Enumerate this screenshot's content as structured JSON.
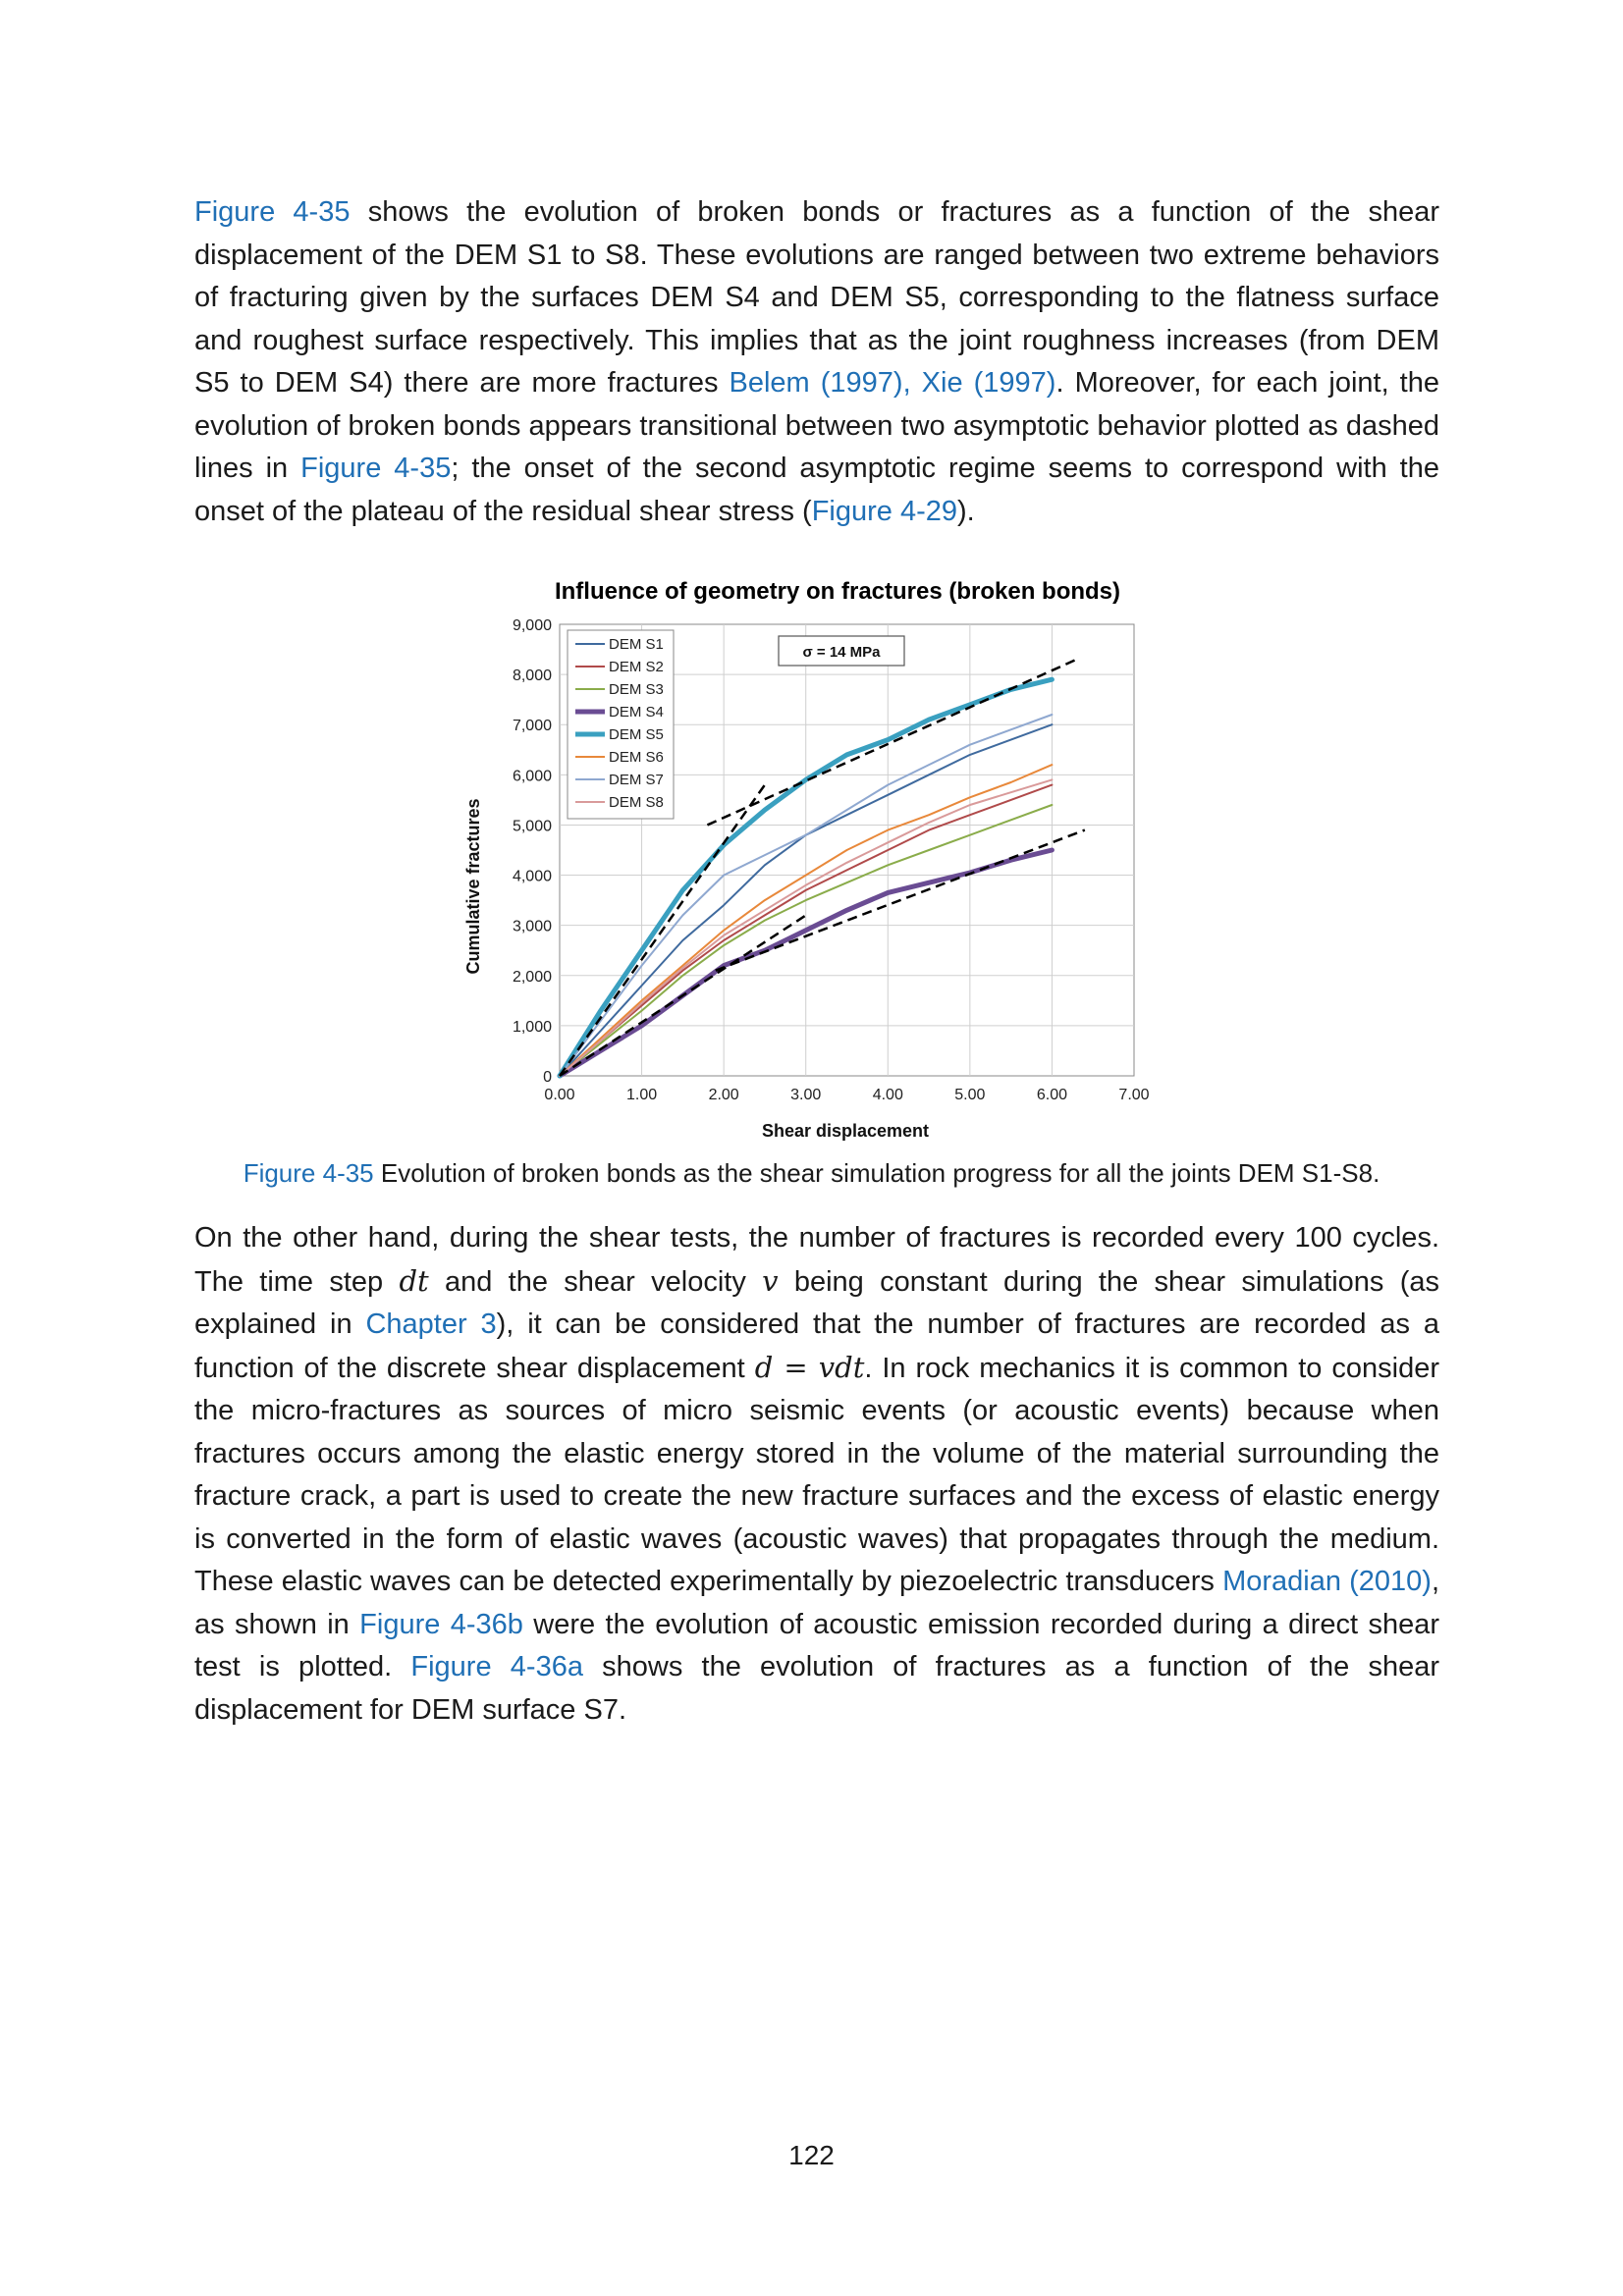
{
  "paragraph1": {
    "seg1": "Figure 4-35",
    "seg2": " shows the evolution of broken bonds or fractures as a function of the shear displacement of the DEM S1 to S8. These evolutions are ranged between two extreme behaviors of fracturing given by the surfaces DEM S4 and DEM S5, corresponding to the flatness surface and roughest surface respectively. This implies that as the joint roughness increases (from DEM S5 to DEM S4) there are more fractures ",
    "seg3": "Belem (1997), Xie (1997)",
    "seg4": ". Moreover, for each joint, the evolution of broken bonds appears transitional between two asymptotic behavior plotted as dashed lines in ",
    "seg5": "Figure 4-35",
    "seg6": "; the onset of the second asymptotic regime seems to correspond with the onset of the plateau of the residual shear stress (",
    "seg7": "Figure 4-29",
    "seg8": ")."
  },
  "figure": {
    "caption_ref": "Figure 4-35",
    "caption_text": " Evolution of broken bonds as the shear simulation progress for all the joints DEM S1-S8."
  },
  "paragraph2": {
    "seg1": "On the other hand, during the shear tests, the number of fractures is recorded every 100 cycles. The time step ",
    "seg2": "dt",
    "seg3": " and the shear velocity ",
    "seg4": "v",
    "seg5": " being constant during the shear simulations (as explained in ",
    "seg6": "Chapter 3",
    "seg7": "), it can be considered that the number of fractures are recorded as a function of the discrete shear displacement ",
    "seg8": "d = vdt",
    "seg9": ". In rock mechanics it is common to consider the micro-fractures as sources of micro seismic events (or acoustic events) because when fractures occurs among the elastic energy stored in the volume of the material surrounding the fracture crack, a part is used to create the new fracture surfaces and the excess of elastic energy is converted in the form of elastic waves (acoustic waves) that propagates through the medium. These elastic waves can be detected experimentally by piezoelectric transducers ",
    "seg10": "Moradian (2010)",
    "seg11": ", as shown in ",
    "seg12": "Figure 4-36b",
    "seg13": " were the evolution of acoustic emission recorded during a direct shear test is plotted. ",
    "seg14": "Figure 4-36a",
    "seg15": " shows the evolution of fractures as a function of the shear displacement for DEM surface S7."
  },
  "page_number": "122",
  "colors": {
    "link": "#1f6fb5"
  },
  "chart_data": {
    "type": "line",
    "title": "Influence of geometry on fractures (broken bonds)",
    "xlabel": "Shear displacement",
    "ylabel": "Cumulative fractures",
    "xlim": [
      0,
      7
    ],
    "ylim": [
      0,
      9000
    ],
    "x_ticks": [
      "0.00",
      "1.00",
      "2.00",
      "3.00",
      "4.00",
      "5.00",
      "6.00",
      "7.00"
    ],
    "y_ticks": [
      "0",
      "1,000",
      "2,000",
      "3,000",
      "4,000",
      "5,000",
      "6,000",
      "7,000",
      "8,000",
      "9,000"
    ],
    "grid": true,
    "legend_position": "top-left",
    "annotation": "σ = 14 MPa",
    "series": [
      {
        "name": "DEM S1",
        "color": "#3f6a9e",
        "width": 2,
        "x": [
          0,
          0.5,
          1,
          1.5,
          2,
          2.5,
          3,
          3.5,
          4,
          4.5,
          5,
          5.5,
          6
        ],
        "y": [
          0,
          900,
          1800,
          2700,
          3400,
          4200,
          4800,
          5200,
          5600,
          6000,
          6400,
          6700,
          7000
        ]
      },
      {
        "name": "DEM S2",
        "color": "#b04a4a",
        "width": 2,
        "x": [
          0,
          0.5,
          1,
          1.5,
          2,
          2.5,
          3,
          3.5,
          4,
          4.5,
          5,
          5.5,
          6
        ],
        "y": [
          0,
          700,
          1400,
          2100,
          2700,
          3200,
          3700,
          4100,
          4500,
          4900,
          5200,
          5500,
          5800
        ]
      },
      {
        "name": "DEM S3",
        "color": "#8aac4a",
        "width": 2,
        "x": [
          0,
          0.5,
          1,
          1.5,
          2,
          2.5,
          3,
          3.5,
          4,
          4.5,
          5,
          5.5,
          6
        ],
        "y": [
          0,
          650,
          1300,
          2000,
          2600,
          3100,
          3500,
          3850,
          4200,
          4500,
          4800,
          5100,
          5400
        ]
      },
      {
        "name": "DEM S4",
        "color": "#6a4c93",
        "width": 5,
        "x": [
          0,
          0.5,
          1,
          1.5,
          2,
          2.5,
          3,
          3.5,
          4,
          4.5,
          5,
          5.5,
          6
        ],
        "y": [
          0,
          500,
          1000,
          1600,
          2200,
          2500,
          2900,
          3300,
          3650,
          3850,
          4050,
          4300,
          4500
        ]
      },
      {
        "name": "DEM S5",
        "color": "#3aa0c0",
        "width": 5,
        "x": [
          0,
          0.5,
          1,
          1.5,
          2,
          2.5,
          3,
          3.5,
          4,
          4.5,
          5,
          5.5,
          6
        ],
        "y": [
          0,
          1300,
          2500,
          3700,
          4600,
          5300,
          5900,
          6400,
          6700,
          7100,
          7400,
          7700,
          7900
        ]
      },
      {
        "name": "DEM S6",
        "color": "#e8883a",
        "width": 2,
        "x": [
          0,
          0.5,
          1,
          1.5,
          2,
          2.5,
          3,
          3.5,
          4,
          4.5,
          5,
          5.5,
          6
        ],
        "y": [
          0,
          750,
          1500,
          2200,
          2900,
          3500,
          4000,
          4500,
          4900,
          5200,
          5550,
          5850,
          6200
        ]
      },
      {
        "name": "DEM S7",
        "color": "#8fa8d0",
        "width": 2,
        "x": [
          0,
          0.5,
          1,
          1.5,
          2,
          2.5,
          3,
          3.5,
          4,
          4.5,
          5,
          5.5,
          6
        ],
        "y": [
          0,
          1100,
          2200,
          3200,
          4000,
          4400,
          4800,
          5300,
          5800,
          6200,
          6600,
          6900,
          7200
        ]
      },
      {
        "name": "DEM S8",
        "color": "#d99a9a",
        "width": 2,
        "x": [
          0,
          0.5,
          1,
          1.5,
          2,
          2.5,
          3,
          3.5,
          4,
          4.5,
          5,
          5.5,
          6
        ],
        "y": [
          0,
          700,
          1450,
          2150,
          2800,
          3300,
          3800,
          4250,
          4650,
          5050,
          5400,
          5650,
          5900
        ]
      }
    ],
    "asymptotes": [
      {
        "x": [
          0,
          2.5
        ],
        "y": [
          0,
          5800
        ]
      },
      {
        "x": [
          1.8,
          6.3
        ],
        "y": [
          5000,
          8300
        ]
      },
      {
        "x": [
          0,
          3
        ],
        "y": [
          0,
          3200
        ]
      },
      {
        "x": [
          1.9,
          6.4
        ],
        "y": [
          2100,
          4900
        ]
      }
    ]
  }
}
